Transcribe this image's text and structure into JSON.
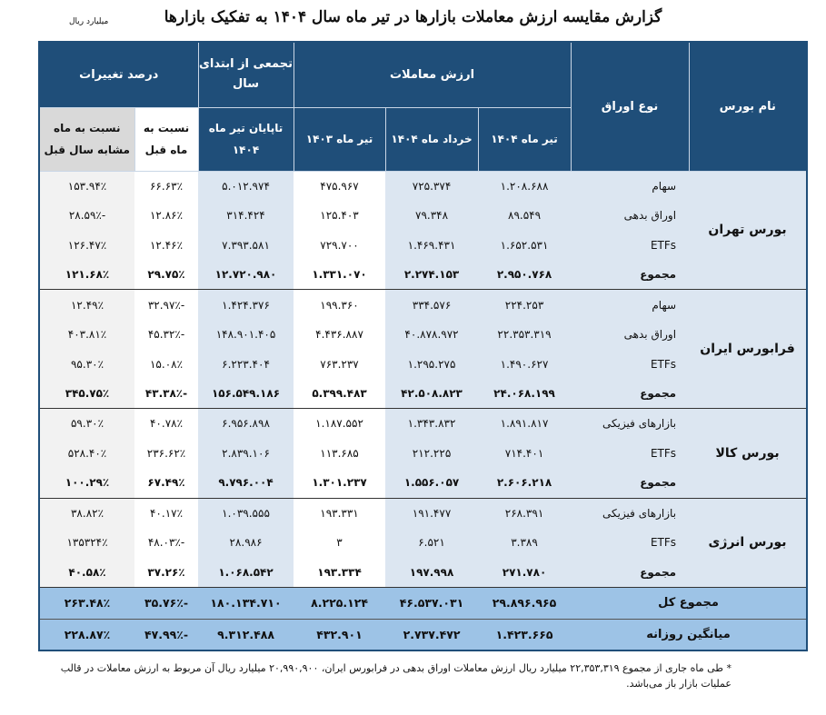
{
  "title": "گزارش مقایسه ارزش معاملات بازارها در تیر ماه سال ۱۴۰۴ به تفکیک بازارها",
  "unit": "میلیارد ریال",
  "header": {
    "market": "نام بورس",
    "type": "نوع اوراق",
    "value_group": "ارزش معاملات",
    "cumulative": "تجمعی از ابتدای سال",
    "change_group": "درصد تغییرات",
    "col_tir_1404": "تیر ماه ۱۴۰۴",
    "col_khordad_1404": "خرداد ماه ۱۴۰۴",
    "col_tir_1403": "تیر ماه ۱۴۰۳",
    "col_cum_1404": "تاپایان تیر ماه ۱۴۰۴",
    "col_vs_prev_month": "نسبت به ماه قبل",
    "col_vs_last_year": "نسبت به ماه مشابه سال قبل"
  },
  "groups": [
    {
      "market": "بورس تهران",
      "rows": [
        {
          "type": "سهام",
          "v": [
            "۱.۲۰۸.۶۸۸",
            "۷۲۵.۳۷۴",
            "۴۷۵.۹۶۷",
            "۵.۰۱۲.۹۷۴",
            "۶۶.۶۳٪",
            "۱۵۳.۹۴٪"
          ]
        },
        {
          "type": "اوراق بدهی",
          "v": [
            "۸۹.۵۴۹",
            "۷۹.۳۴۸",
            "۱۲۵.۴۰۳",
            "۳۱۴.۴۲۴",
            "۱۲.۸۶٪",
            "-۲۸.۵۹٪"
          ]
        },
        {
          "type": "ETFs",
          "v": [
            "۱.۶۵۲.۵۳۱",
            "۱.۴۶۹.۴۳۱",
            "۷۲۹.۷۰۰",
            "۷.۳۹۳.۵۸۱",
            "۱۲.۴۶٪",
            "۱۲۶.۴۷٪"
          ]
        },
        {
          "type": "مجموع",
          "sum": true,
          "v": [
            "۲.۹۵۰.۷۶۸",
            "۲.۲۷۴.۱۵۳",
            "۱.۳۳۱.۰۷۰",
            "۱۲.۷۲۰.۹۸۰",
            "۲۹.۷۵٪",
            "۱۲۱.۶۸٪"
          ]
        }
      ]
    },
    {
      "market": "فرابورس ایران",
      "rows": [
        {
          "type": "سهام",
          "v": [
            "۲۲۴.۲۵۳",
            "۳۳۴.۵۷۶",
            "۱۹۹.۳۶۰",
            "۱.۴۲۴.۳۷۶",
            "-۳۲.۹۷٪",
            "۱۲.۴۹٪"
          ]
        },
        {
          "type": "اوراق بدهی",
          "v": [
            "۲۲.۳۵۳.۳۱۹",
            "۴۰.۸۷۸.۹۷۲",
            "۴.۴۳۶.۸۸۷",
            "۱۴۸.۹۰۱.۴۰۵",
            "-۴۵.۳۲٪",
            "۴۰۳.۸۱٪"
          ]
        },
        {
          "type": "ETFs",
          "v": [
            "۱.۴۹۰.۶۲۷",
            "۱.۲۹۵.۲۷۵",
            "۷۶۳.۲۳۷",
            "۶.۲۲۳.۴۰۴",
            "۱۵.۰۸٪",
            "۹۵.۳۰٪"
          ]
        },
        {
          "type": "مجموع",
          "sum": true,
          "v": [
            "۲۴.۰۶۸.۱۹۹",
            "۴۲.۵۰۸.۸۲۳",
            "۵.۳۹۹.۴۸۳",
            "۱۵۶.۵۴۹.۱۸۶",
            "-۴۳.۳۸٪",
            "۳۴۵.۷۵٪"
          ]
        }
      ]
    },
    {
      "market": "بورس کالا",
      "rows": [
        {
          "type": "بازارهای فیزیکی",
          "v": [
            "۱.۸۹۱.۸۱۷",
            "۱.۳۴۳.۸۳۲",
            "۱.۱۸۷.۵۵۲",
            "۶.۹۵۶.۸۹۸",
            "۴۰.۷۸٪",
            "۵۹.۳۰٪"
          ]
        },
        {
          "type": "ETFs",
          "v": [
            "۷۱۴.۴۰۱",
            "۲۱۲.۲۲۵",
            "۱۱۳.۶۸۵",
            "۲.۸۳۹.۱۰۶",
            "۲۳۶.۶۲٪",
            "۵۲۸.۴۰٪"
          ]
        },
        {
          "type": "مجموع",
          "sum": true,
          "v": [
            "۲.۶۰۶.۲۱۸",
            "۱.۵۵۶.۰۵۷",
            "۱.۳۰۱.۲۳۷",
            "۹.۷۹۶.۰۰۴",
            "۶۷.۴۹٪",
            "۱۰۰.۲۹٪"
          ]
        }
      ]
    },
    {
      "market": "بورس انرژی",
      "rows": [
        {
          "type": "بازارهای فیزیکی",
          "v": [
            "۲۶۸.۳۹۱",
            "۱۹۱.۴۷۷",
            "۱۹۳.۳۳۱",
            "۱.۰۳۹.۵۵۵",
            "۴۰.۱۷٪",
            "۳۸.۸۲٪"
          ]
        },
        {
          "type": "ETFs",
          "v": [
            "۳.۳۸۹",
            "۶.۵۲۱",
            "۳",
            "۲۸.۹۸۶",
            "-۴۸.۰۳٪",
            "۱۳۵۳۲۴٪"
          ]
        },
        {
          "type": "مجموع",
          "sum": true,
          "v": [
            "۲۷۱.۷۸۰",
            "۱۹۷.۹۹۸",
            "۱۹۳.۳۳۴",
            "۱.۰۶۸.۵۴۲",
            "۳۷.۲۶٪",
            "۴۰.۵۸٪"
          ]
        }
      ]
    }
  ],
  "totals": [
    {
      "label": "مجموع کل",
      "v": [
        "۲۹.۸۹۶.۹۶۵",
        "۴۶.۵۳۷.۰۳۱",
        "۸.۲۲۵.۱۲۴",
        "۱۸۰.۱۳۴.۷۱۰",
        "-۳۵.۷۶٪",
        "۲۶۳.۴۸٪"
      ]
    },
    {
      "label": "میانگین روزانه",
      "v": [
        "۱.۴۲۳.۶۶۵",
        "۲.۷۳۷.۴۷۲",
        "۴۳۲.۹۰۱",
        "۹.۳۱۲.۴۸۸",
        "-۴۷.۹۹٪",
        "۲۲۸.۸۷٪"
      ]
    }
  ],
  "footnote": "* طی ماه جاری از مجموع ۲۲,۳۵۳,۳۱۹ میلیارد ریال ارزش معاملات اوراق بدهی در فرابورس ایران، ۲۰,۹۹۰,۹۰۰ میلیارد ریال آن مربوط به ارزش معاملات در قالب عملیات بازار باز می‌باشد."
}
